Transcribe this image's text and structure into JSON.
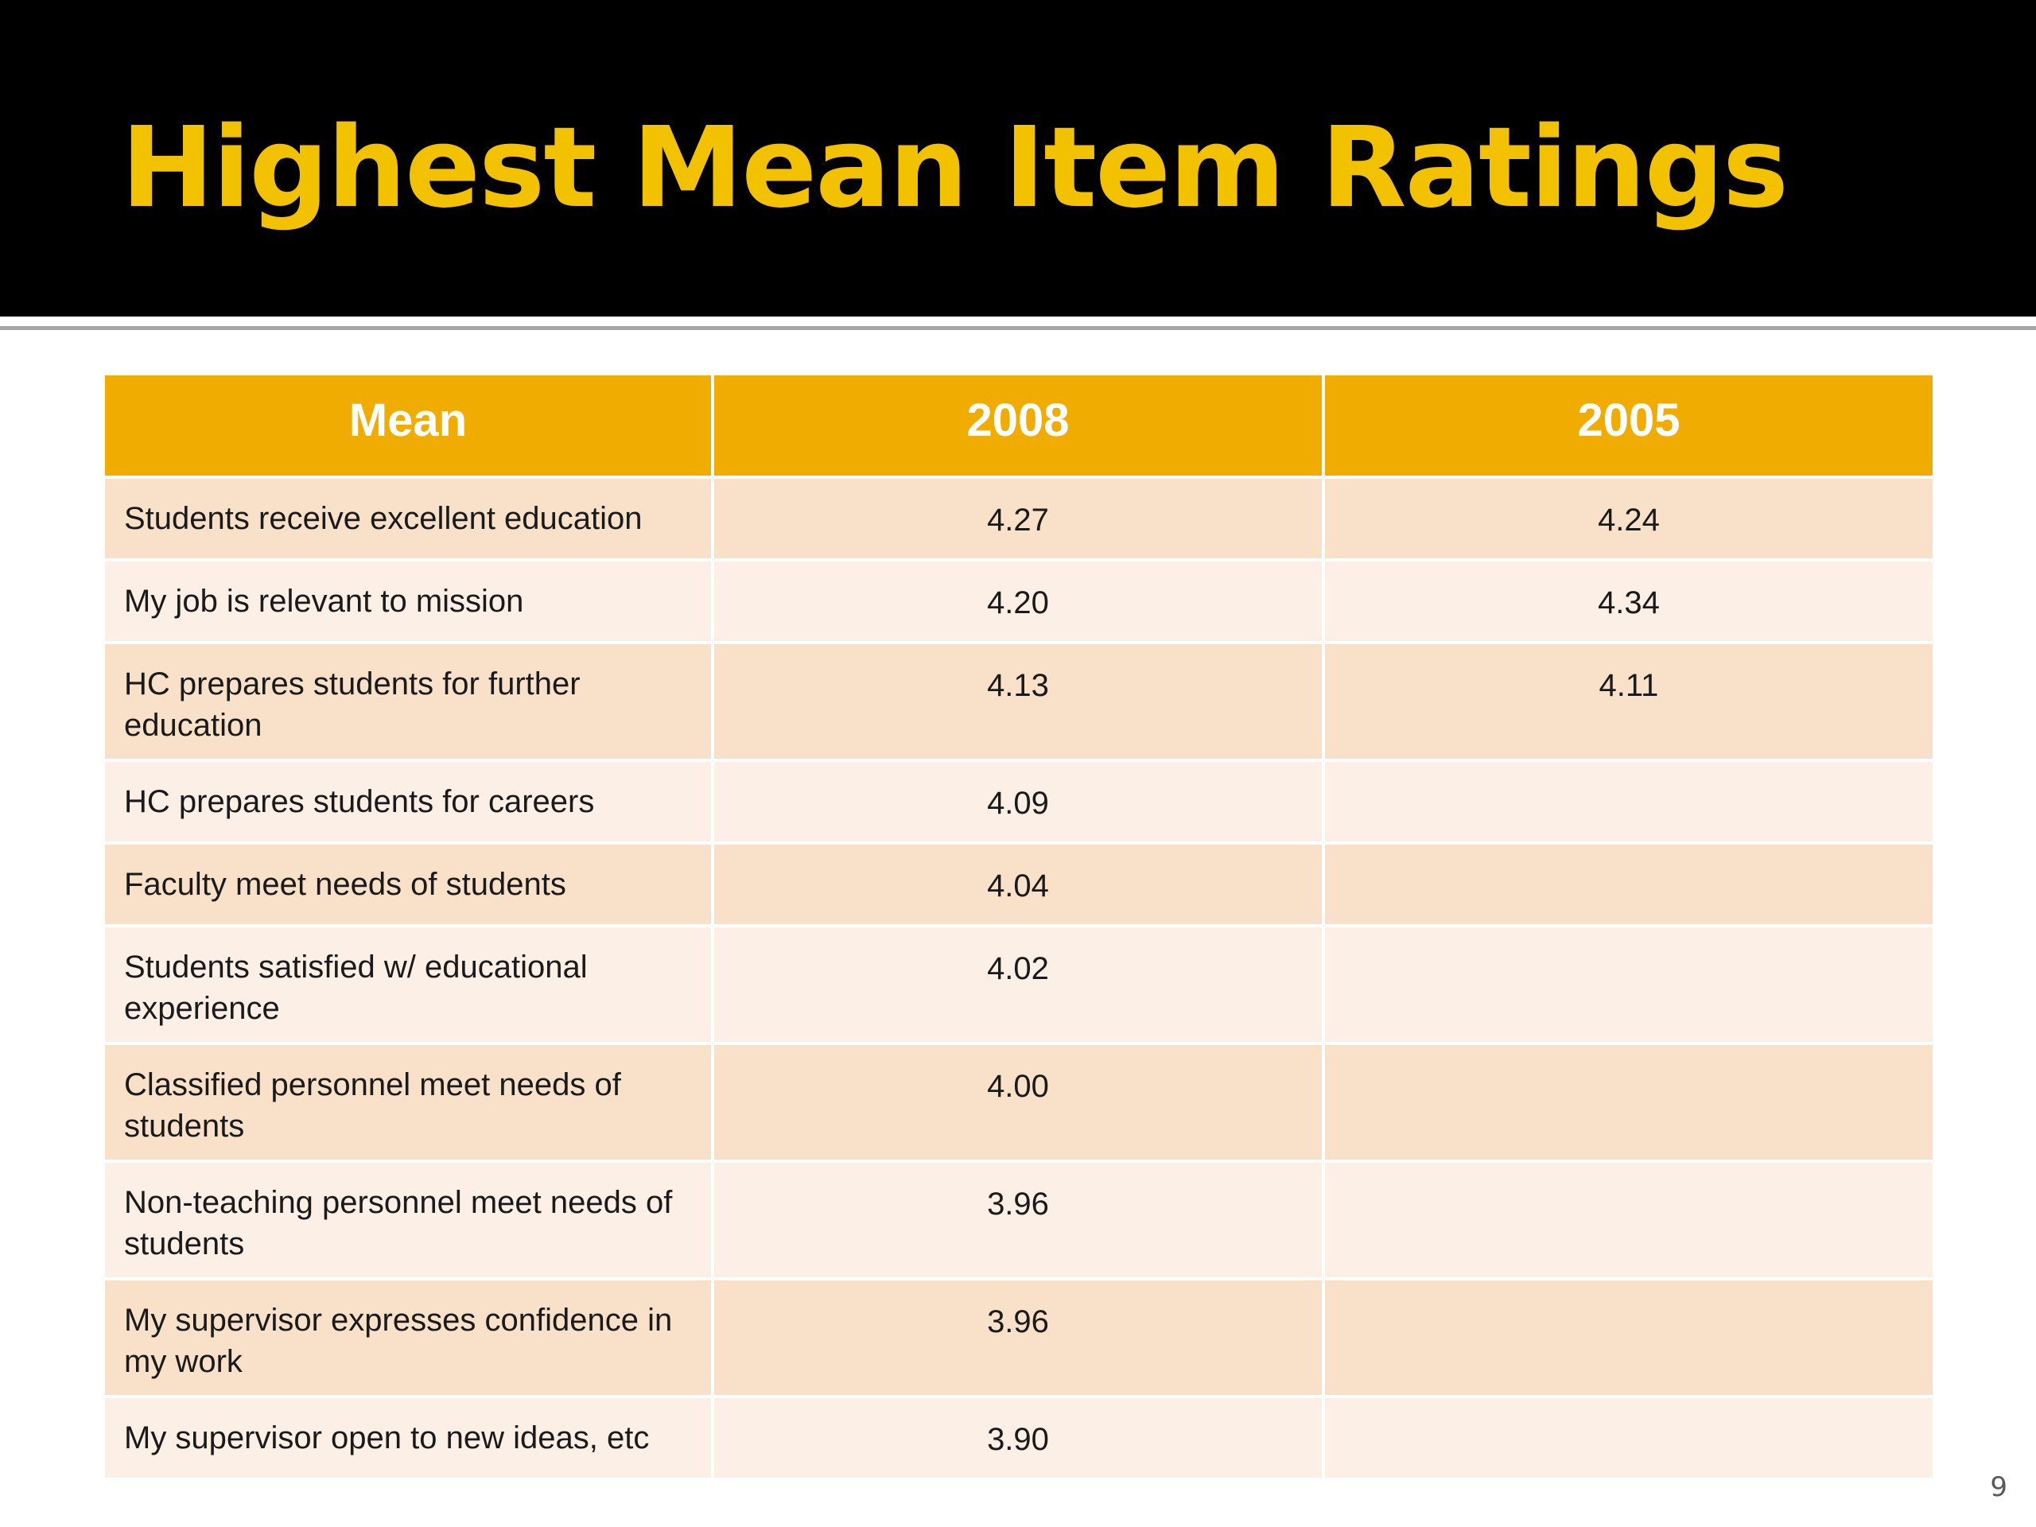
{
  "slide": {
    "title": "Highest Mean Item Ratings",
    "page_number": "9"
  },
  "table": {
    "headers": [
      "Mean",
      "2008",
      "2005"
    ],
    "rows": [
      {
        "item": "Students receive excellent education",
        "y2008": "4.27",
        "y2005": "4.24"
      },
      {
        "item": "My job is relevant to mission",
        "y2008": "4.20",
        "y2005": "4.34"
      },
      {
        "item": "HC prepares students for further education",
        "y2008": "4.13",
        "y2005": "4.11"
      },
      {
        "item": "HC prepares students for careers",
        "y2008": "4.09",
        "y2005": ""
      },
      {
        "item": "Faculty meet needs of students",
        "y2008": "4.04",
        "y2005": ""
      },
      {
        "item": "Students satisfied w/ educational experience",
        "y2008": "4.02",
        "y2005": ""
      },
      {
        "item": "Classified personnel meet needs of students",
        "y2008": "4.00",
        "y2005": ""
      },
      {
        "item": "Non-teaching personnel meet needs of students",
        "y2008": "3.96",
        "y2005": ""
      },
      {
        "item": "My supervisor expresses confidence in my work",
        "y2008": "3.96",
        "y2005": ""
      },
      {
        "item": "My supervisor open to new ideas, etc",
        "y2008": "3.90",
        "y2005": ""
      }
    ]
  },
  "colors": {
    "title_bar": "#000000",
    "title_text": "#f2c200",
    "header_fill": "#f0ac00",
    "row_dark": "#f9e1c9",
    "row_light": "#fcefe6"
  }
}
